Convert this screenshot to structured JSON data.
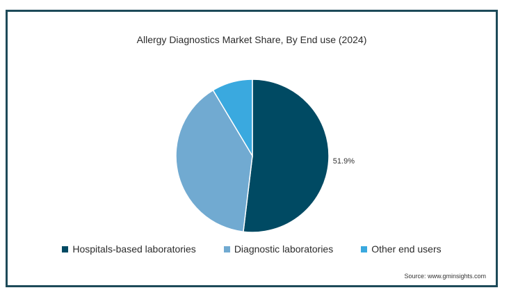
{
  "chart_data": {
    "type": "pie",
    "title": "Allergy Diagnostics Market Share, By End use (2024)",
    "series": [
      {
        "name": "Hospitals-based laboratories",
        "value": 51.9,
        "color": "#004a63",
        "label": "51.9%"
      },
      {
        "name": "Diagnostic laboratories",
        "value": 39.5,
        "color": "#71aad1",
        "label": ""
      },
      {
        "name": "Other end users",
        "value": 8.6,
        "color": "#3aa9df",
        "label": ""
      }
    ]
  },
  "source": "Source: www.gminsights.com"
}
